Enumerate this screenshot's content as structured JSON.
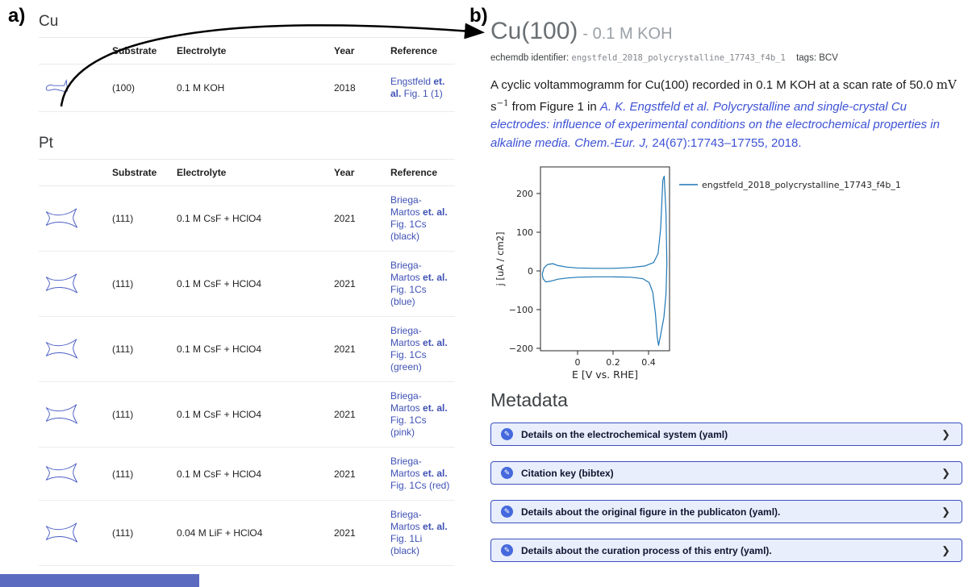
{
  "panel_a": {
    "label": "a)",
    "columns": [
      "Substrate",
      "Electrolyte",
      "Year",
      "Reference"
    ],
    "sections": [
      {
        "heading": "Cu",
        "rows": [
          {
            "substrate": "(100)",
            "electrolyte": "0.1 M KOH",
            "year": "2018",
            "ref_author": "Engstfeld ",
            "ref_etal": "et. al.",
            "ref_rest": " Fig. 1 (1)"
          }
        ]
      },
      {
        "heading": "Pt",
        "rows": [
          {
            "substrate": "(111)",
            "electrolyte": "0.1 M CsF + HClO4",
            "year": "2021",
            "ref_author": "Briega-Martos ",
            "ref_etal": "et. al.",
            "ref_rest": " Fig. 1Cs (black)"
          },
          {
            "substrate": "(111)",
            "electrolyte": "0.1 M CsF + HClO4",
            "year": "2021",
            "ref_author": "Briega-Martos ",
            "ref_etal": "et. al.",
            "ref_rest": " Fig. 1Cs (blue)"
          },
          {
            "substrate": "(111)",
            "electrolyte": "0.1 M CsF + HClO4",
            "year": "2021",
            "ref_author": "Briega-Martos ",
            "ref_etal": "et. al.",
            "ref_rest": " Fig. 1Cs (green)"
          },
          {
            "substrate": "(111)",
            "electrolyte": "0.1 M CsF + HClO4",
            "year": "2021",
            "ref_author": "Briega-Martos ",
            "ref_etal": "et. al.",
            "ref_rest": " Fig. 1Cs (pink)"
          },
          {
            "substrate": "(111)",
            "electrolyte": "0.1 M CsF + HClO4",
            "year": "2021",
            "ref_author": "Briega-Martos ",
            "ref_etal": "et. al.",
            "ref_rest": " Fig. 1Cs (red)"
          },
          {
            "substrate": "(111)",
            "electrolyte": "0.04 M LiF + HClO4",
            "year": "2021",
            "ref_author": "Briega-Martos ",
            "ref_etal": "et. al.",
            "ref_rest": " Fig. 1Li (black)"
          }
        ]
      }
    ]
  },
  "panel_b": {
    "label": "b)",
    "title": "Cu(100)",
    "subtitle": "- 0.1 M KOH",
    "identifier_label": "echemdb identifier:",
    "identifier": "engstfeld_2018_polycrystalline_17743_f4b_1",
    "tags_label": "tags:",
    "tags_value": "BCV",
    "description": {
      "pre": "A cyclic voltammogramm for Cu(100) recorded in 0.1 M KOH at a scan rate of 50.0 ",
      "units": "mV s",
      "units_sup": "−1",
      "mid": " from Figure 1 in ",
      "citation_italic": "A. K. Engstfeld et al. Polycrystalline and single-crystal Cu electrodes: influence of experimental conditions on the electrochemical properties in alkaline media. Chem.-Eur. J,",
      "citation_tail": " 24(67):17743–17755, 2018."
    },
    "metadata_heading": "Metadata",
    "accordions": [
      {
        "label": "Details on the electrochemical system (yaml)"
      },
      {
        "label": "Citation key (bibtex)"
      },
      {
        "label": "Details about the original figure in the publicaton (yaml)."
      },
      {
        "label": "Details about the curation process of this entry (yaml)."
      }
    ]
  },
  "chart_data": {
    "type": "line",
    "title": "",
    "xlabel": "E [V vs. RHE]",
    "ylabel": "j [uA / cm2]",
    "xlim": [
      -0.21,
      0.52
    ],
    "ylim": [
      -206,
      269
    ],
    "x_tick_labels": [
      "0",
      "0.2",
      "0.4"
    ],
    "y_tick_labels": [
      "200",
      "100",
      "0",
      "−100",
      "−200"
    ],
    "legend_position": "upper right, outside",
    "series": [
      {
        "name": "engstfeld_2018_polycrystalline_17743_f4b_1",
        "color": "#1f77b4",
        "x": [
          -0.2,
          -0.19,
          -0.17,
          -0.14,
          -0.11,
          -0.06,
          0.0,
          0.1,
          0.2,
          0.3,
          0.38,
          0.43,
          0.455,
          0.47,
          0.482,
          0.49,
          0.5,
          0.505,
          0.5,
          0.488,
          0.47,
          0.458,
          0.45,
          0.44,
          0.425,
          0.405,
          0.37,
          0.3,
          0.2,
          0.1,
          0.0,
          -0.06,
          -0.11,
          -0.15,
          -0.18,
          -0.195,
          -0.2
        ],
        "y": [
          -8,
          8,
          17,
          19,
          14,
          10,
          8,
          7,
          7,
          9,
          13,
          22,
          45,
          110,
          235,
          245,
          150,
          20,
          -60,
          -120,
          -165,
          -192,
          -170,
          -110,
          -55,
          -30,
          -20,
          -16,
          -15,
          -15,
          -16,
          -18,
          -21,
          -26,
          -28,
          -20,
          -8
        ]
      }
    ]
  }
}
